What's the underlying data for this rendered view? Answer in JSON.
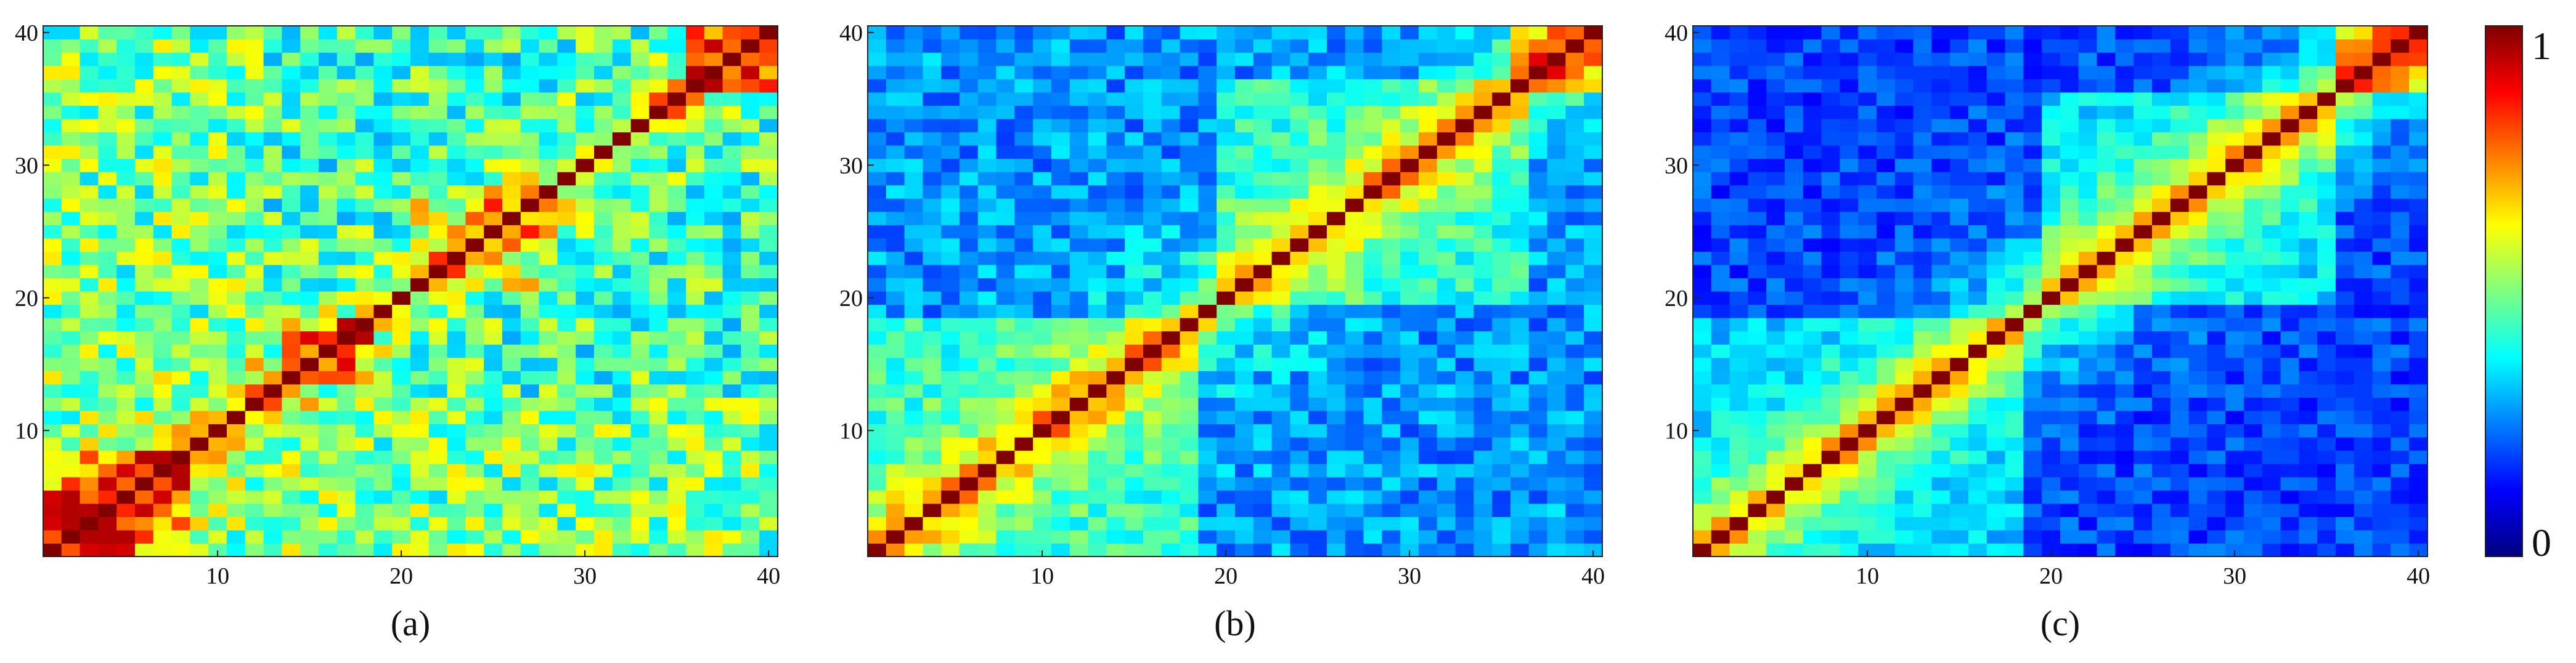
{
  "chart_data": [
    {
      "type": "heatmap",
      "caption": "(a)",
      "n": 40,
      "xlim": [
        1,
        40
      ],
      "ylim": [
        1,
        40
      ],
      "xticks": [
        10,
        20,
        30,
        40
      ],
      "yticks": [
        10,
        20,
        30,
        40
      ],
      "colorscale": "jet",
      "value_range": [
        0,
        1
      ],
      "diagonal": 1.0,
      "pattern": "noisy similarity matrix; strong diagonal; warm blocks near (1-8,1-8), (14-18,14-18), (22-28,22-28), (36-40,36-40)"
    },
    {
      "type": "heatmap",
      "caption": "(b)",
      "n": 40,
      "xlim": [
        1,
        40
      ],
      "ylim": [
        1,
        40
      ],
      "xticks": [
        10,
        20,
        30,
        40
      ],
      "yticks": [
        10,
        20,
        30,
        40
      ],
      "colorscale": "jet",
      "value_range": [
        0,
        1
      ],
      "diagonal": 1.0,
      "pattern": "smoother similarity matrix; diagonal band; blocks near (1-18,1-18) and (20-36,20-36) with hot corner (36-40,36-40)"
    },
    {
      "type": "heatmap",
      "caption": "(c)",
      "n": 40,
      "xlim": [
        1,
        40
      ],
      "ylim": [
        1,
        40
      ],
      "xticks": [
        10,
        20,
        30,
        40
      ],
      "yticks": [
        10,
        20,
        30,
        40
      ],
      "colorscale": "jet",
      "value_range": [
        0,
        1
      ],
      "diagonal": 1.0,
      "pattern": "cleanest similarity matrix; low off-diagonal values; blocks near (1-18,1-18) and (20-35,20-35) with hot corner (36-40,36-40)"
    }
  ],
  "colorbar": {
    "max_label": "1",
    "min_label": "0",
    "colormap": "jet",
    "colors": [
      "#00007f",
      "#0000ff",
      "#00ffff",
      "#ffff00",
      "#ff0000",
      "#7f0000"
    ]
  }
}
